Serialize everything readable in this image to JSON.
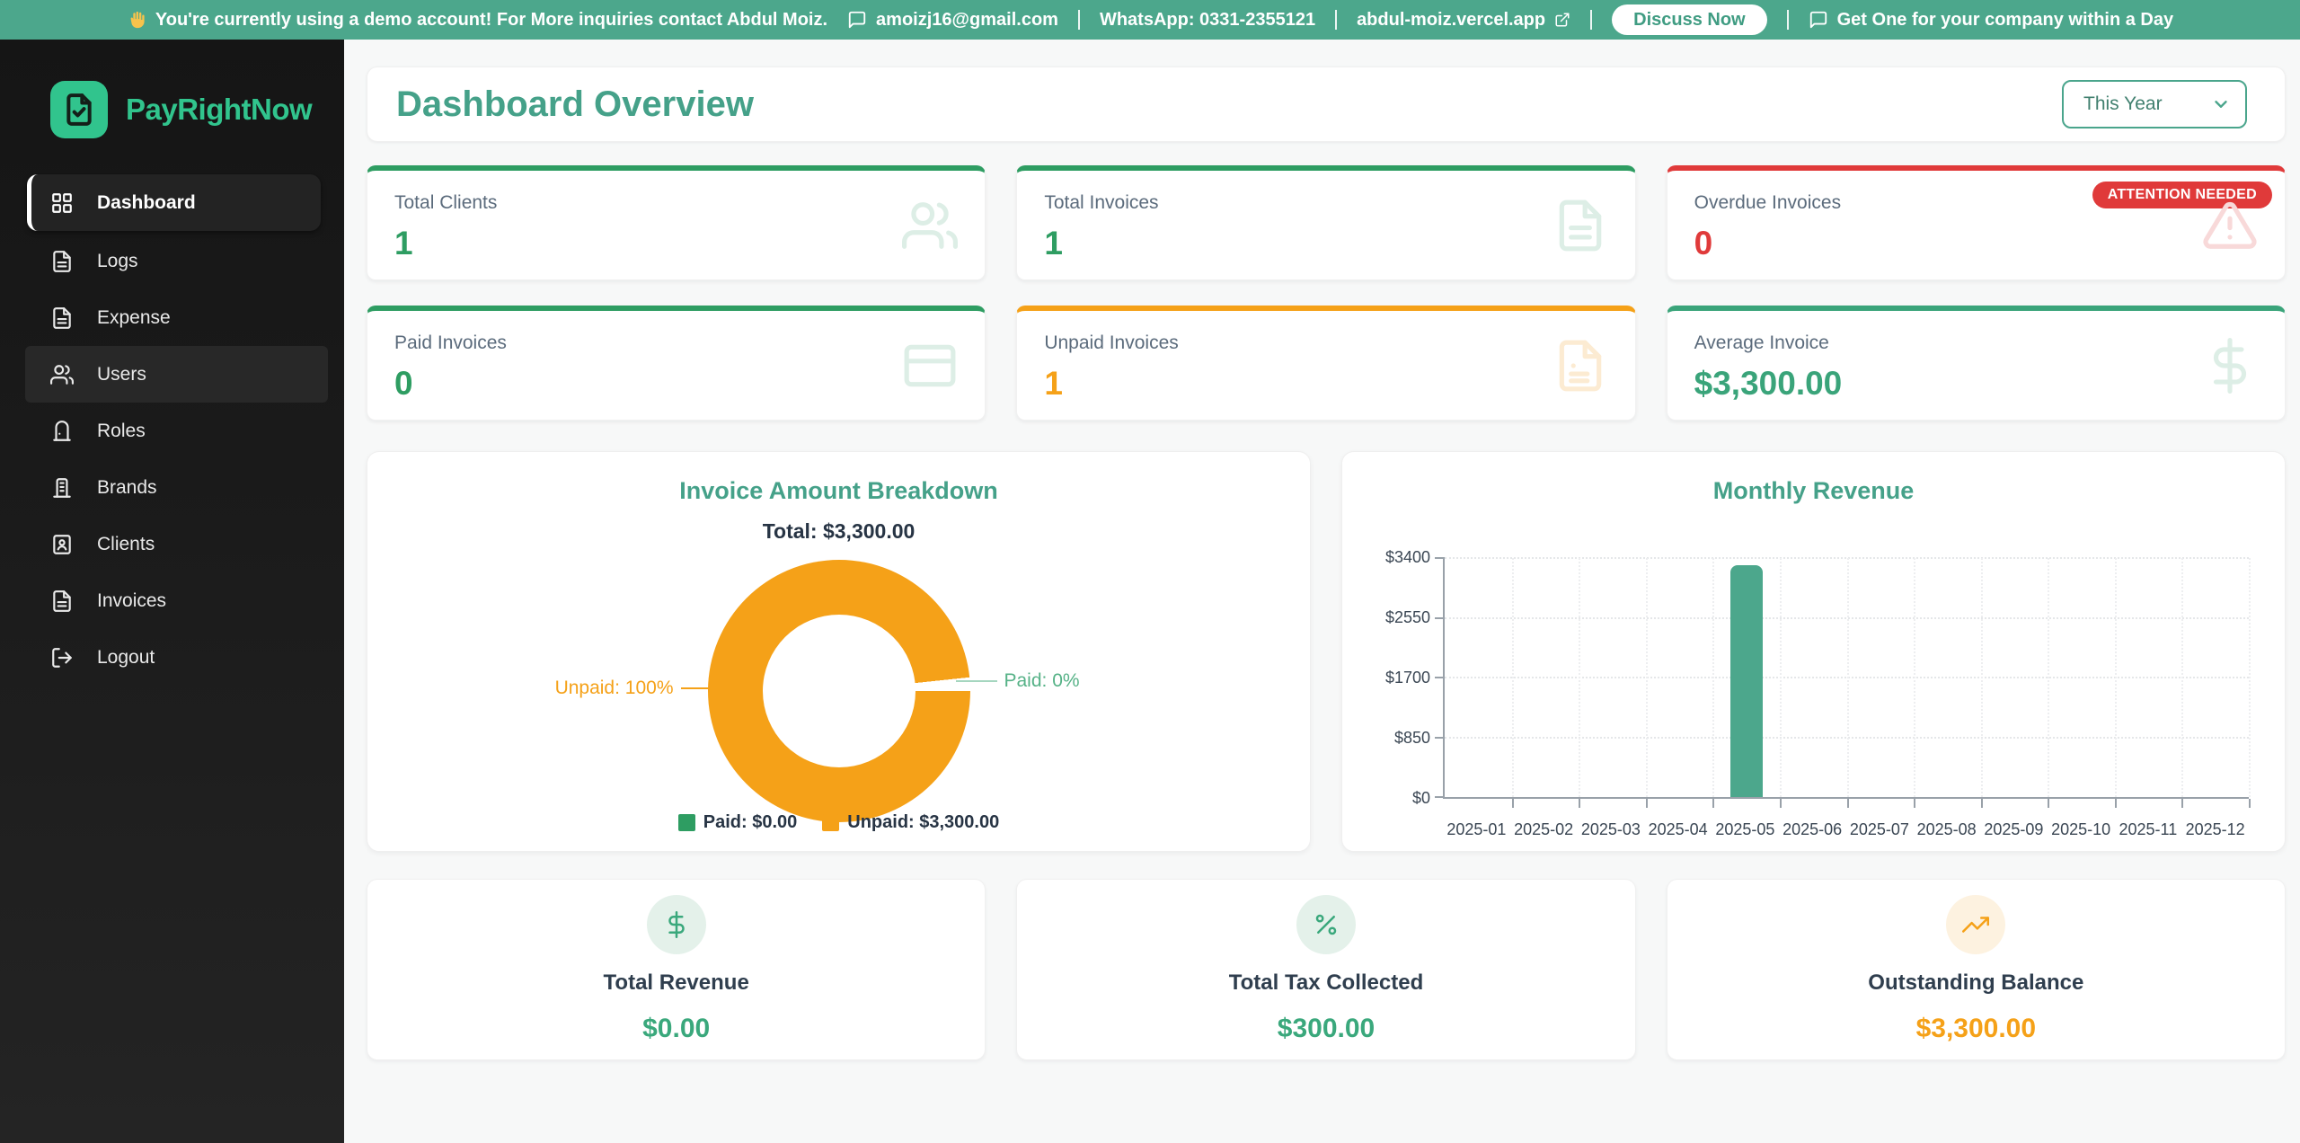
{
  "banner": {
    "wave_icon": "waving-hand-icon",
    "message": "You're currently using a demo account! For More inquiries contact Abdul Moiz.",
    "email": "amoizj16@gmail.com",
    "whatsapp": "WhatsApp: 0331-2355121",
    "website": "abdul-moiz.vercel.app",
    "discuss_button": "Discuss Now",
    "cta": "Get One for your company within a Day"
  },
  "sidebar": {
    "brand": "PayRightNow",
    "items": [
      {
        "label": "Dashboard",
        "icon": "grid-icon",
        "state": "active"
      },
      {
        "label": "Logs",
        "icon": "file-text-icon",
        "state": "default"
      },
      {
        "label": "Expense",
        "icon": "file-text-icon",
        "state": "default"
      },
      {
        "label": "Users",
        "icon": "users-icon",
        "state": "highlight"
      },
      {
        "label": "Roles",
        "icon": "door-icon",
        "state": "default"
      },
      {
        "label": "Brands",
        "icon": "building-icon",
        "state": "default"
      },
      {
        "label": "Clients",
        "icon": "contact-icon",
        "state": "default"
      },
      {
        "label": "Invoices",
        "icon": "file-text-icon",
        "state": "default"
      },
      {
        "label": "Logout",
        "icon": "logout-icon",
        "state": "default"
      }
    ]
  },
  "header": {
    "title": "Dashboard Overview",
    "period": "This Year"
  },
  "stats": [
    {
      "label": "Total Clients",
      "value": "1",
      "accent": "#2e9d62",
      "icon": "users-icon",
      "tint": "#ddeee6"
    },
    {
      "label": "Total Invoices",
      "value": "1",
      "accent": "#2e9d62",
      "icon": "file-text-icon",
      "tint": "#ddeee6"
    },
    {
      "label": "Overdue Invoices",
      "value": "0",
      "accent": "#e03a3a",
      "icon": "alert-triangle-icon",
      "tint": "#f8d9d9",
      "badge": "ATTENTION NEEDED"
    },
    {
      "label": "Paid Invoices",
      "value": "0",
      "accent": "#2e9d62",
      "icon": "credit-card-icon",
      "tint": "#ddeee6"
    },
    {
      "label": "Unpaid Invoices",
      "value": "1",
      "accent": "#f5a118",
      "icon": "file-invoice-icon",
      "tint": "#fcebd2"
    },
    {
      "label": "Average Invoice",
      "value": "$3,300.00",
      "accent": "#3aa47a",
      "icon": "dollar-icon",
      "tint": "#ddeee6"
    }
  ],
  "chart_data": [
    {
      "type": "pie",
      "title": "Invoice Amount Breakdown",
      "subtitle": "Total: $3,300.00",
      "total": 3300,
      "slices": [
        {
          "name": "Paid",
          "value": 0,
          "percent": 0,
          "callout": "Paid: 0%",
          "legend": "Paid: $0.00",
          "color": "#2e9d62"
        },
        {
          "name": "Unpaid",
          "value": 3300,
          "percent": 100,
          "callout": "Unpaid: 100%",
          "legend": "Unpaid: $3,300.00",
          "color": "#f5a118"
        }
      ],
      "legend_position": "bottom"
    },
    {
      "type": "bar",
      "title": "Monthly Revenue",
      "categories": [
        "2025-01",
        "2025-02",
        "2025-03",
        "2025-04",
        "2025-05",
        "2025-06",
        "2025-07",
        "2025-08",
        "2025-09",
        "2025-10",
        "2025-11",
        "2025-12"
      ],
      "values": [
        0,
        0,
        0,
        0,
        3300,
        0,
        0,
        0,
        0,
        0,
        0,
        0
      ],
      "y_ticks": [
        "$0",
        "$850",
        "$1700",
        "$2550",
        "$3400"
      ],
      "ylim": [
        0,
        3400
      ],
      "bar_color": "#4ca78c",
      "grid": "dotted"
    }
  ],
  "summary": [
    {
      "label": "Total Revenue",
      "value": "$0.00",
      "accent": "#3aa87c",
      "icon": "dollar-icon",
      "tint": "#e4f1ea"
    },
    {
      "label": "Total Tax Collected",
      "value": "$300.00",
      "accent": "#3aa87c",
      "icon": "percent-icon",
      "tint": "#e4f1ea"
    },
    {
      "label": "Outstanding Balance",
      "value": "$3,300.00",
      "accent": "#f5a118",
      "icon": "trending-up-icon",
      "tint": "#fdf2e0"
    }
  ],
  "colors": {
    "banner": "#4ca78c",
    "brand": "#31c48d",
    "heading": "#45a189",
    "green": "#2e9d62",
    "orange": "#f5a118",
    "red": "#e03a3a"
  }
}
